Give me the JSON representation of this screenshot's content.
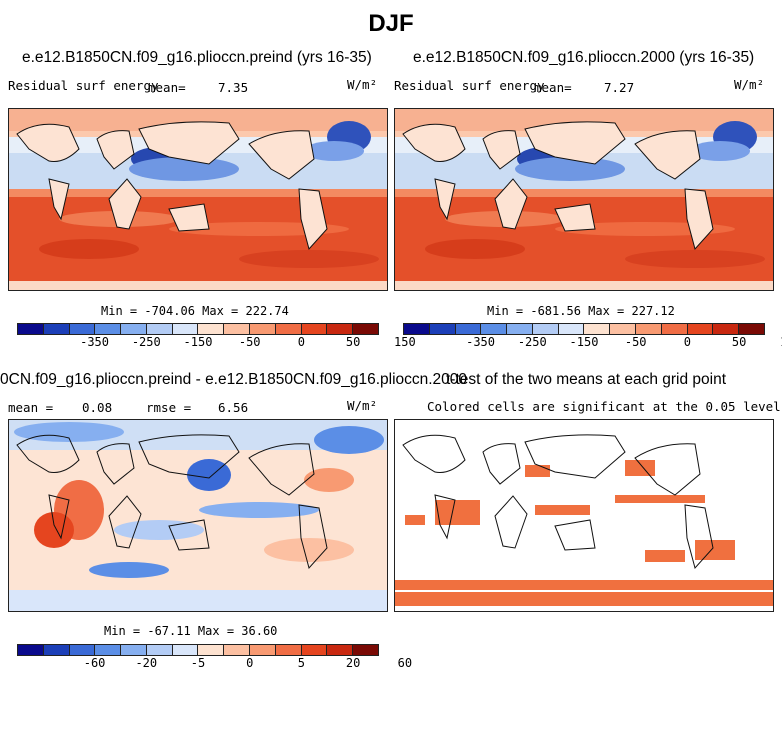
{
  "season": "DJF",
  "panels": [
    {
      "title": "e.e12.B1850CN.f09_g16.plioccn.preind (yrs 16-35)",
      "variable": "Residual surf energy",
      "mean_label": "mean=",
      "mean_value": "7.35",
      "units": "W/m²",
      "minmax": "Min = -704.06 Max = 222.74"
    },
    {
      "title": "e.e12.B1850CN.f09_g16.plioccn.2000 (yrs 16-35)",
      "variable": "Residual surf energy",
      "mean_label": "mean=",
      "mean_value": "7.27",
      "units": "W/m²",
      "minmax": "Min = -681.56 Max = 227.12"
    },
    {
      "title": "0CN.f09_g16.plioccn.preind - e.e12.B1850CN.f09_g16.plioccn.2000",
      "mean_label": "mean =",
      "mean_value": "0.08",
      "rmse_label": "rmse =",
      "rmse_value": "6.56",
      "units": "W/m²",
      "minmax": "Min = -67.11 Max =  36.60"
    },
    {
      "title": "t-test of the two means at each grid point",
      "subtitle": "Colored cells are significant at the 0.05 level"
    }
  ],
  "colorbars": {
    "top": {
      "colors": [
        "#0a0a8c",
        "#1c3fb8",
        "#3a6ad6",
        "#5b8ee6",
        "#86aff0",
        "#b3ccf5",
        "#d9e6fa",
        "#fde2d0",
        "#fcc0a2",
        "#f89a72",
        "#f06d45",
        "#e5451f",
        "#c82810",
        "#7a0a05"
      ],
      "tick_labels": [
        "-350",
        "-250",
        "-150",
        "-50",
        "0",
        "50",
        "150"
      ]
    },
    "bottom": {
      "colors": [
        "#0a0a8c",
        "#1c3fb8",
        "#3a6ad6",
        "#5b8ee6",
        "#86aff0",
        "#b3ccf5",
        "#d9e6fa",
        "#fde2d0",
        "#fcc0a2",
        "#f89a72",
        "#f06d45",
        "#e5451f",
        "#c82810",
        "#7a0a05"
      ],
      "tick_labels": [
        "-60",
        "-20",
        "-5",
        "0",
        "5",
        "20",
        "60"
      ]
    }
  }
}
